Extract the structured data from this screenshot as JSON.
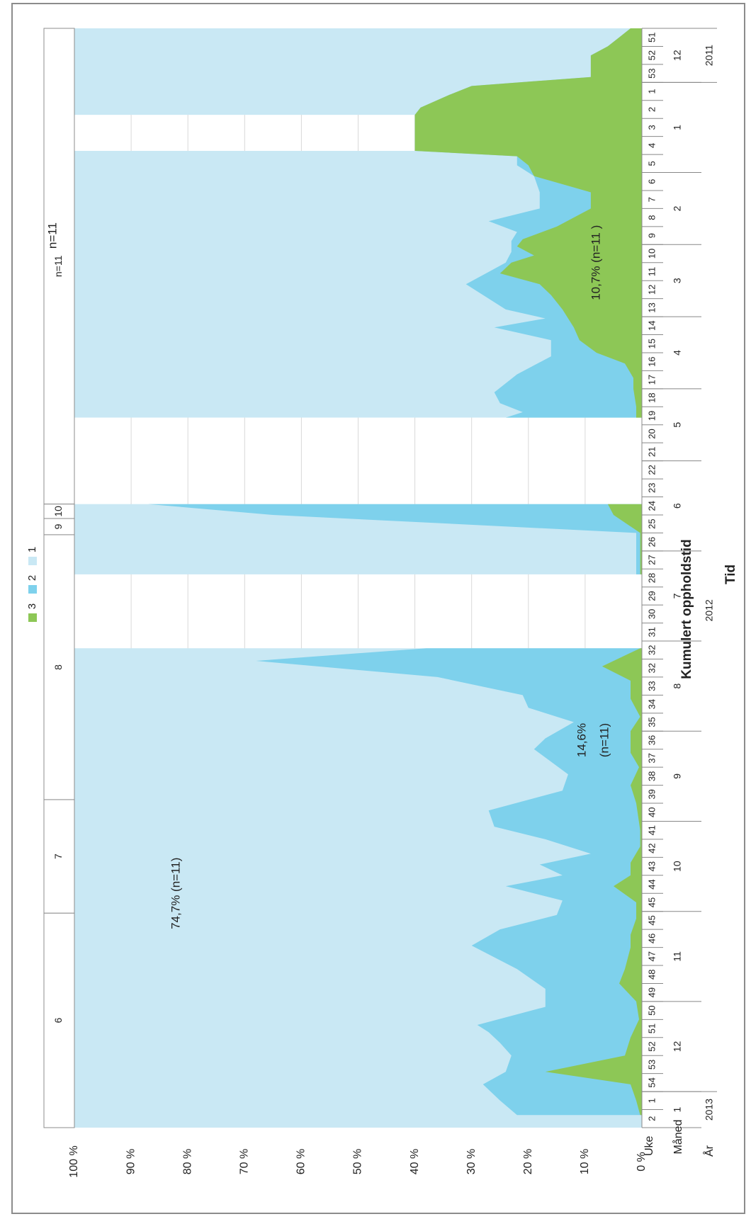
{
  "chart_data": {
    "type": "area",
    "stacked": true,
    "orientation": "rotated-90-clockwise",
    "ylabel": "Kumulert oppholdstid",
    "xlabel": "Tid",
    "ylim": [
      0,
      100
    ],
    "ytick_labels": [
      "0 %",
      "10 %",
      "20 %",
      "30 %",
      "40 %",
      "50 %",
      "60 %",
      "70 %",
      "80 %",
      "90 %",
      "100 %"
    ],
    "axis_row_labels": {
      "week": "Uke",
      "month": "Måned",
      "year": "År"
    },
    "weeks": [
      "51",
      "52",
      "53",
      "1",
      "2",
      "3",
      "4",
      "5",
      "6",
      "7",
      "8",
      "9",
      "10",
      "11",
      "12",
      "13",
      "14",
      "15",
      "16",
      "17",
      "18",
      "19",
      "20",
      "21",
      "22",
      "23",
      "24",
      "25",
      "26",
      "27",
      "28",
      "29",
      "30",
      "31",
      "32",
      "32",
      "33",
      "34",
      "35",
      "36",
      "37",
      "38",
      "39",
      "40",
      "41",
      "42",
      "43",
      "44",
      "45",
      "45",
      "46",
      "47",
      "48",
      "49",
      "50",
      "51",
      "52",
      "53",
      "54",
      "1",
      "2"
    ],
    "months": [
      {
        "label": "12",
        "from": 0,
        "to": 3
      },
      {
        "label": "1",
        "from": 3,
        "to": 8
      },
      {
        "label": "2",
        "from": 8,
        "to": 12
      },
      {
        "label": "3",
        "from": 12,
        "to": 16
      },
      {
        "label": "4",
        "from": 16,
        "to": 20
      },
      {
        "label": "5",
        "from": 20,
        "to": 24
      },
      {
        "label": "6",
        "from": 24,
        "to": 29
      },
      {
        "label": "7",
        "from": 29,
        "to": 34
      },
      {
        "label": "8",
        "from": 34,
        "to": 39
      },
      {
        "label": "9",
        "from": 39,
        "to": 44
      },
      {
        "label": "10",
        "from": 44,
        "to": 49
      },
      {
        "label": "11",
        "from": 49,
        "to": 54
      },
      {
        "label": "12",
        "from": 54,
        "to": 59
      },
      {
        "label": "1",
        "from": 59,
        "to": 61
      }
    ],
    "years": [
      {
        "label": "2011",
        "from": 0,
        "to": 3
      },
      {
        "label": "2012",
        "from": 3,
        "to": 59
      },
      {
        "label": "2013",
        "from": 59,
        "to": 61
      }
    ],
    "gaps": [
      [
        4.8,
        6.8
      ],
      [
        21.6,
        26.4
      ],
      [
        30.3,
        34.4
      ]
    ],
    "series": [
      {
        "name": "3",
        "color": "#8dc756",
        "values": [
          [
            0,
            2
          ],
          [
            0.5,
            4
          ],
          [
            1,
            6
          ],
          [
            1.5,
            9
          ],
          [
            2.7,
            9
          ],
          [
            3.2,
            30
          ],
          [
            3.7,
            34
          ],
          [
            4.4,
            39
          ],
          [
            4.8,
            40
          ],
          [
            6.8,
            40
          ],
          [
            7.1,
            22
          ],
          [
            7.6,
            20
          ],
          [
            8.2,
            19
          ],
          [
            9.1,
            9
          ],
          [
            10,
            9
          ],
          [
            11,
            15
          ],
          [
            11.7,
            21
          ],
          [
            12.1,
            22
          ],
          [
            12.6,
            19
          ],
          [
            13,
            23
          ],
          [
            13.6,
            25
          ],
          [
            14.2,
            18
          ],
          [
            14.8,
            16
          ],
          [
            15.6,
            14
          ],
          [
            16.6,
            12
          ],
          [
            17.3,
            11
          ],
          [
            18,
            8
          ],
          [
            18.6,
            3
          ],
          [
            19.4,
            1.5
          ],
          [
            20,
            1.5
          ],
          [
            21,
            1
          ],
          [
            21.6,
            1
          ]
        ]
      },
      {
        "name": "3",
        "color": "#8dc756",
        "values": [
          [
            26.4,
            6
          ],
          [
            27,
            5
          ],
          [
            28,
            0.3
          ],
          [
            29,
            0.3
          ],
          [
            30.3,
            0.3
          ]
        ]
      },
      {
        "name": "3",
        "color": "#8dc756",
        "values": [
          [
            34.4,
            0.3
          ],
          [
            35.4,
            7
          ],
          [
            36.2,
            2
          ],
          [
            37.2,
            2
          ],
          [
            38.2,
            0.3
          ],
          [
            39,
            2
          ],
          [
            40.2,
            2
          ],
          [
            41,
            0.5
          ],
          [
            42,
            2
          ],
          [
            43,
            1
          ],
          [
            44.5,
            0.3
          ],
          [
            45.4,
            0.3
          ],
          [
            46.3,
            2
          ],
          [
            47,
            2
          ],
          [
            47.6,
            5
          ],
          [
            48.5,
            1
          ],
          [
            49.4,
            1
          ],
          [
            50.3,
            2
          ],
          [
            51,
            2
          ],
          [
            52.2,
            3
          ],
          [
            53,
            4
          ],
          [
            54,
            1
          ],
          [
            55,
            0.5
          ],
          [
            56,
            2
          ],
          [
            57,
            3
          ],
          [
            57.9,
            17
          ],
          [
            58.6,
            2
          ],
          [
            59.5,
            1
          ],
          [
            60.3,
            0.3
          ]
        ]
      }
    ],
    "series_2_top": [
      [
        [
          0,
          2
        ],
        [
          0.5,
          4
        ],
        [
          1,
          6
        ],
        [
          1.5,
          9
        ],
        [
          2.7,
          9
        ],
        [
          3.2,
          30
        ],
        [
          3.7,
          34
        ],
        [
          4.4,
          39
        ],
        [
          4.8,
          40
        ],
        [
          6.8,
          40
        ],
        [
          7.1,
          22
        ],
        [
          7.6,
          22
        ],
        [
          8.2,
          19
        ],
        [
          9.1,
          18
        ],
        [
          10,
          18
        ],
        [
          10.7,
          27
        ],
        [
          11.3,
          22
        ],
        [
          11.8,
          23
        ],
        [
          12.4,
          23
        ],
        [
          13,
          24
        ],
        [
          14.2,
          31
        ],
        [
          15.6,
          24
        ],
        [
          16.1,
          17
        ],
        [
          16.6,
          26
        ],
        [
          17.3,
          16
        ],
        [
          18.2,
          16
        ],
        [
          19.2,
          22
        ],
        [
          20.2,
          26
        ],
        [
          20.8,
          25
        ],
        [
          21.3,
          21
        ],
        [
          21.6,
          24
        ]
      ],
      [
        [
          26.4,
          87
        ],
        [
          27,
          65
        ],
        [
          28,
          1
        ],
        [
          29,
          1
        ],
        [
          30.3,
          1
        ]
      ],
      [
        [
          34.4,
          38
        ],
        [
          35.1,
          68
        ],
        [
          36,
          36
        ],
        [
          37,
          21
        ],
        [
          37.7,
          20
        ],
        [
          38.5,
          12
        ],
        [
          39.4,
          17
        ],
        [
          40,
          19
        ],
        [
          41.4,
          13
        ],
        [
          42.3,
          14
        ],
        [
          43.4,
          27
        ],
        [
          44.3,
          26
        ],
        [
          45,
          17
        ],
        [
          45.8,
          9
        ],
        [
          46.4,
          18
        ],
        [
          47,
          14
        ],
        [
          47.6,
          24
        ],
        [
          48.4,
          14
        ],
        [
          49.2,
          15
        ],
        [
          50,
          25
        ],
        [
          50.9,
          30
        ],
        [
          52.2,
          22
        ],
        [
          53.3,
          17
        ],
        [
          54.3,
          17
        ],
        [
          55.3,
          29
        ],
        [
          55.7,
          27
        ],
        [
          56.3,
          25
        ],
        [
          57,
          23
        ],
        [
          57.9,
          24
        ],
        [
          58.6,
          28
        ],
        [
          59.5,
          25
        ],
        [
          60.3,
          22
        ]
      ]
    ],
    "series_legend": [
      {
        "name": "3",
        "color": "#8dc756"
      },
      {
        "name": "2",
        "color": "#7ed1ec"
      },
      {
        "name": "1",
        "color": "#c9e8f4"
      }
    ],
    "annotations": [
      {
        "text": "74,7% (n=11)",
        "x": 48,
        "y": 82
      },
      {
        "text": "14,6%",
        "x": 39.5,
        "y": 10.5
      },
      {
        "text": "(n=11)",
        "x": 39.5,
        "y": 6.5
      },
      {
        "text": "10,7% (n=11 )",
        "x": 13,
        "y": 8
      },
      {
        "text": "n=11",
        "x": 11.5,
        "y": 104
      }
    ],
    "top_band": [
      {
        "label": "n=11",
        "from": 0,
        "to": 26.4
      },
      {
        "label": "10",
        "from": 26.4,
        "to": 27.2
      },
      {
        "label": "9",
        "from": 27.2,
        "to": 28.1
      },
      {
        "label": "8",
        "from": 28.1,
        "to": 42.8
      },
      {
        "label": "7",
        "from": 42.8,
        "to": 49.1
      },
      {
        "label": "6",
        "from": 49.1,
        "to": 61
      }
    ]
  }
}
